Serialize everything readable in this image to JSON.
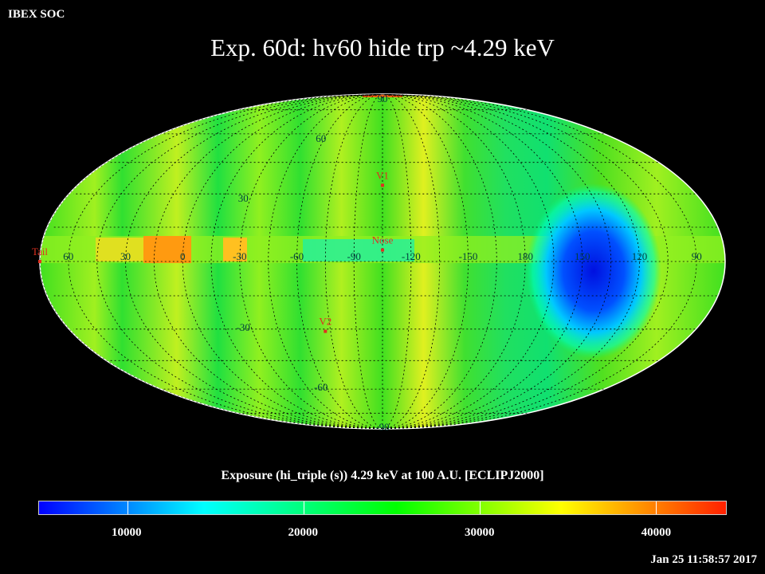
{
  "header": {
    "org": "IBEX SOC",
    "title": "Exp.   60d: hv60 hide trp ~4.29 keV"
  },
  "map": {
    "projection": "mollweide",
    "meridian_labels": [
      "60",
      "30",
      "0",
      "-30",
      "-60",
      "-90",
      "-120",
      "-150",
      "180",
      "150",
      "120",
      "90"
    ],
    "parallel_labels": [
      "90",
      "60",
      "30",
      "-30",
      "-60",
      "-90"
    ],
    "markers": [
      {
        "label": "V1",
        "lon": -105,
        "lat": 34
      },
      {
        "label": "Nose",
        "lon": -105,
        "lat": 5
      },
      {
        "label": "V2",
        "lon": -72,
        "lat": -31
      },
      {
        "label": "Tail",
        "lon": 75,
        "lat": 0
      }
    ],
    "colors": {
      "marker": "#e03020",
      "grid": "#000000",
      "labels": "#004040"
    }
  },
  "colorbar": {
    "caption": "Exposure (hi_triple (s))  4.29 keV at 100 A.U. [ECLIPJ2000]",
    "ticks": [
      10000,
      20000,
      30000,
      40000
    ],
    "range": [
      5000,
      44000
    ],
    "colors": [
      "#0000ff",
      "#00ffff",
      "#00ff00",
      "#ffff00",
      "#ff2000"
    ]
  },
  "footer": {
    "timestamp": "Jan 25 11:58:57 2017"
  }
}
